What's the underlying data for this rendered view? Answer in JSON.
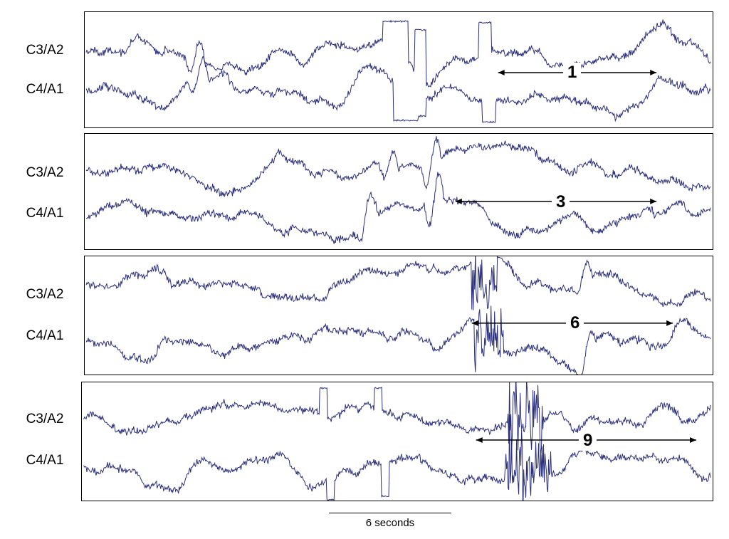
{
  "trace_color": "#2b2f7a",
  "scale_label": "6 seconds",
  "panels": [
    {
      "channels": [
        "C3/A2",
        "C4/A1"
      ],
      "arrow_label": "1"
    },
    {
      "channels": [
        "C3/A2",
        "C4/A1"
      ],
      "arrow_label": "3"
    },
    {
      "channels": [
        "C3/A2",
        "C4/A1"
      ],
      "arrow_label": "6"
    },
    {
      "channels": [
        "C3/A2",
        "C4/A1"
      ],
      "arrow_label": "9"
    }
  ]
}
